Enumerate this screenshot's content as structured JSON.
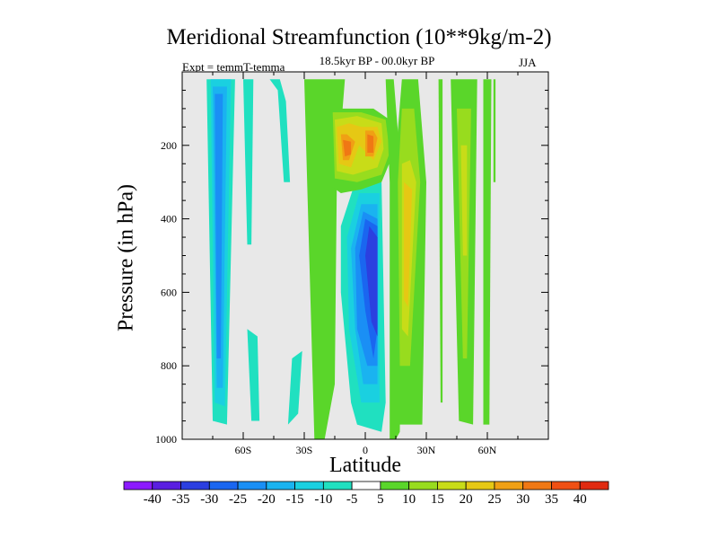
{
  "chart_data": {
    "type": "heatmap",
    "title": "Meridional Streamfunction (10**9kg/m-2)",
    "subtitle": "18.5kyr BP - 00.0kyr BP",
    "left_label": "Expt = temmT-temma",
    "right_label": "JJA",
    "xlabel": "Latitude",
    "ylabel": "Pressure (in hPa)",
    "xlim": [
      -90,
      90
    ],
    "ylim": [
      1000,
      0
    ],
    "x_ticks": [
      {
        "value": -60,
        "label": "60S"
      },
      {
        "value": -30,
        "label": "30S"
      },
      {
        "value": 0,
        "label": "0"
      },
      {
        "value": 30,
        "label": "30N"
      },
      {
        "value": 60,
        "label": "60N"
      }
    ],
    "y_ticks": [
      {
        "value": 200,
        "label": "200"
      },
      {
        "value": 400,
        "label": "400"
      },
      {
        "value": 600,
        "label": "600"
      },
      {
        "value": 800,
        "label": "800"
      },
      {
        "value": 1000,
        "label": "1000"
      }
    ],
    "background_color": "#e8e8e8",
    "colorbar": {
      "labels": [
        "-40",
        "-35",
        "-30",
        "-25",
        "-20",
        "-15",
        "-10",
        "-5",
        "5",
        "10",
        "15",
        "20",
        "25",
        "30",
        "35",
        "40"
      ],
      "colors": [
        "#8c1aff",
        "#5a1fe0",
        "#2b3fe0",
        "#1a66f0",
        "#1a8ff5",
        "#1ab3f0",
        "#1ad0e0",
        "#20e0c0",
        "#ffffff",
        "#5ad62a",
        "#98dc1e",
        "#c8dc18",
        "#e6c814",
        "#f0a014",
        "#f07814",
        "#f05014",
        "#e02a10"
      ]
    },
    "regions": [
      {
        "level": -5,
        "bounds": [
          [
            -78,
            20
          ],
          [
            -75,
            950
          ],
          [
            -68,
            960
          ],
          [
            -64,
            20
          ]
        ]
      },
      {
        "level": -10,
        "bounds": [
          [
            -76,
            20
          ],
          [
            -74,
            900
          ],
          [
            -69,
            910
          ],
          [
            -66,
            20
          ]
        ]
      },
      {
        "level": -15,
        "bounds": [
          [
            -75,
            40
          ],
          [
            -73,
            860
          ],
          [
            -70,
            860
          ],
          [
            -68,
            40
          ]
        ]
      },
      {
        "level": -20,
        "bounds": [
          [
            -74,
            60
          ],
          [
            -73,
            780
          ],
          [
            -71,
            780
          ],
          [
            -70,
            60
          ]
        ]
      },
      {
        "level": -5,
        "bounds": [
          [
            -47,
            20
          ],
          [
            -43,
            50
          ],
          [
            -40,
            300
          ],
          [
            -37,
            300
          ],
          [
            -39,
            80
          ],
          [
            -42,
            20
          ]
        ]
      },
      {
        "level": -5,
        "bounds": [
          [
            -60,
            20
          ],
          [
            -58,
            470
          ],
          [
            -56,
            470
          ],
          [
            -55,
            20
          ]
        ]
      },
      {
        "level": -5,
        "bounds": [
          [
            -58,
            700
          ],
          [
            -56,
            950
          ],
          [
            -52,
            950
          ],
          [
            -53,
            720
          ]
        ]
      },
      {
        "level": -5,
        "bounds": [
          [
            -36,
            780
          ],
          [
            -38,
            960
          ],
          [
            -33,
            930
          ],
          [
            -31,
            760
          ]
        ]
      },
      {
        "level": -5,
        "bounds": [
          [
            -5,
            300
          ],
          [
            -12,
            420
          ],
          [
            -12,
            600
          ],
          [
            -7,
            900
          ],
          [
            -4,
            960
          ],
          [
            8,
            980
          ],
          [
            10,
            900
          ],
          [
            8,
            300
          ]
        ]
      },
      {
        "level": -10,
        "bounds": [
          [
            -3,
            330
          ],
          [
            -9,
            450
          ],
          [
            -8,
            700
          ],
          [
            -2,
            900
          ],
          [
            7,
            900
          ],
          [
            7,
            330
          ]
        ]
      },
      {
        "level": -15,
        "bounds": [
          [
            -2,
            360
          ],
          [
            -7,
            480
          ],
          [
            -5,
            700
          ],
          [
            -1,
            850
          ],
          [
            6,
            850
          ],
          [
            6,
            360
          ]
        ]
      },
      {
        "level": -20,
        "bounds": [
          [
            -1,
            380
          ],
          [
            -5,
            480
          ],
          [
            -4,
            700
          ],
          [
            1,
            800
          ],
          [
            6,
            800
          ],
          [
            6,
            400
          ]
        ]
      },
      {
        "level": -25,
        "bounds": [
          [
            0,
            400
          ],
          [
            -3,
            500
          ],
          [
            0,
            650
          ],
          [
            4,
            780
          ],
          [
            6,
            700
          ],
          [
            6,
            420
          ]
        ]
      },
      {
        "level": -30,
        "bounds": [
          [
            2,
            420
          ],
          [
            0,
            500
          ],
          [
            3,
            680
          ],
          [
            6,
            720
          ],
          [
            6,
            450
          ]
        ]
      },
      {
        "level": 5,
        "bounds": [
          [
            -30,
            20
          ],
          [
            -25,
            1000
          ],
          [
            -20,
            1000
          ],
          [
            -15,
            850
          ],
          [
            -14,
            300
          ],
          [
            -10,
            20
          ]
        ]
      },
      {
        "level": 5,
        "bounds": [
          [
            -18,
            100
          ],
          [
            -17,
            310
          ],
          [
            -12,
            330
          ],
          [
            -2,
            320
          ],
          [
            8,
            300
          ],
          [
            14,
            220
          ],
          [
            12,
            130
          ],
          [
            4,
            100
          ]
        ]
      },
      {
        "level": 10,
        "bounds": [
          [
            -16,
            110
          ],
          [
            -15,
            290
          ],
          [
            -4,
            300
          ],
          [
            8,
            280
          ],
          [
            12,
            220
          ],
          [
            10,
            130
          ],
          [
            -2,
            110
          ]
        ]
      },
      {
        "level": 15,
        "bounds": [
          [
            -15,
            130
          ],
          [
            -14,
            270
          ],
          [
            -6,
            280
          ],
          [
            6,
            260
          ],
          [
            9,
            210
          ],
          [
            8,
            140
          ],
          [
            -4,
            120
          ]
        ]
      },
      {
        "level": 20,
        "bounds": [
          [
            -14,
            150
          ],
          [
            -13,
            250
          ],
          [
            -7,
            260
          ],
          [
            -3,
            200
          ],
          [
            4,
            240
          ],
          [
            8,
            190
          ],
          [
            6,
            150
          ],
          [
            -2,
            150
          ],
          [
            -8,
            140
          ]
        ]
      },
      {
        "level": 25,
        "bounds": [
          [
            -12,
            170
          ],
          [
            -11,
            240
          ],
          [
            -8,
            240
          ],
          [
            -5,
            190
          ],
          [
            -9,
            170
          ]
        ]
      },
      {
        "level": 25,
        "bounds": [
          [
            0,
            160
          ],
          [
            0,
            230
          ],
          [
            4,
            230
          ],
          [
            6,
            180
          ],
          [
            4,
            160
          ]
        ]
      },
      {
        "level": 30,
        "bounds": [
          [
            -11,
            185
          ],
          [
            -10,
            230
          ],
          [
            -7,
            225
          ],
          [
            -7,
            190
          ]
        ]
      },
      {
        "level": 30,
        "bounds": [
          [
            1,
            170
          ],
          [
            1,
            220
          ],
          [
            4,
            220
          ],
          [
            4,
            175
          ]
        ]
      },
      {
        "level": 5,
        "bounds": [
          [
            10,
            20
          ],
          [
            12,
            300
          ],
          [
            12,
            1000
          ],
          [
            15,
            1000
          ],
          [
            17,
            980
          ],
          [
            18,
            300
          ],
          [
            14,
            20
          ]
        ]
      },
      {
        "level": 5,
        "bounds": [
          [
            18,
            20
          ],
          [
            14,
            300
          ],
          [
            14,
            960
          ],
          [
            28,
            960
          ],
          [
            30,
            300
          ],
          [
            26,
            20
          ]
        ]
      },
      {
        "level": 10,
        "bounds": [
          [
            18,
            100
          ],
          [
            16,
            300
          ],
          [
            17,
            800
          ],
          [
            22,
            800
          ],
          [
            27,
            300
          ],
          [
            24,
            100
          ]
        ]
      },
      {
        "level": 15,
        "bounds": [
          [
            18,
            250
          ],
          [
            18,
            700
          ],
          [
            21,
            720
          ],
          [
            25,
            300
          ],
          [
            22,
            240
          ]
        ]
      },
      {
        "level": 20,
        "bounds": [
          [
            19,
            300
          ],
          [
            19,
            620
          ],
          [
            21,
            640
          ],
          [
            23,
            320
          ]
        ]
      },
      {
        "level": 5,
        "bounds": [
          [
            36,
            20
          ],
          [
            37,
            900
          ],
          [
            38,
            900
          ],
          [
            38,
            20
          ]
        ]
      },
      {
        "level": 5,
        "bounds": [
          [
            42,
            20
          ],
          [
            46,
            950
          ],
          [
            53,
            960
          ],
          [
            55,
            20
          ]
        ]
      },
      {
        "level": 10,
        "bounds": [
          [
            45,
            100
          ],
          [
            48,
            780
          ],
          [
            50,
            780
          ],
          [
            52,
            100
          ]
        ]
      },
      {
        "level": 15,
        "bounds": [
          [
            47,
            200
          ],
          [
            48,
            500
          ],
          [
            50,
            500
          ],
          [
            50,
            200
          ]
        ]
      },
      {
        "level": 5,
        "bounds": [
          [
            58,
            20
          ],
          [
            58,
            960
          ],
          [
            61,
            960
          ],
          [
            62,
            20
          ]
        ]
      },
      {
        "level": 5,
        "bounds": [
          [
            63,
            20
          ],
          [
            63,
            300
          ],
          [
            64,
            300
          ],
          [
            64,
            20
          ]
        ]
      }
    ]
  }
}
